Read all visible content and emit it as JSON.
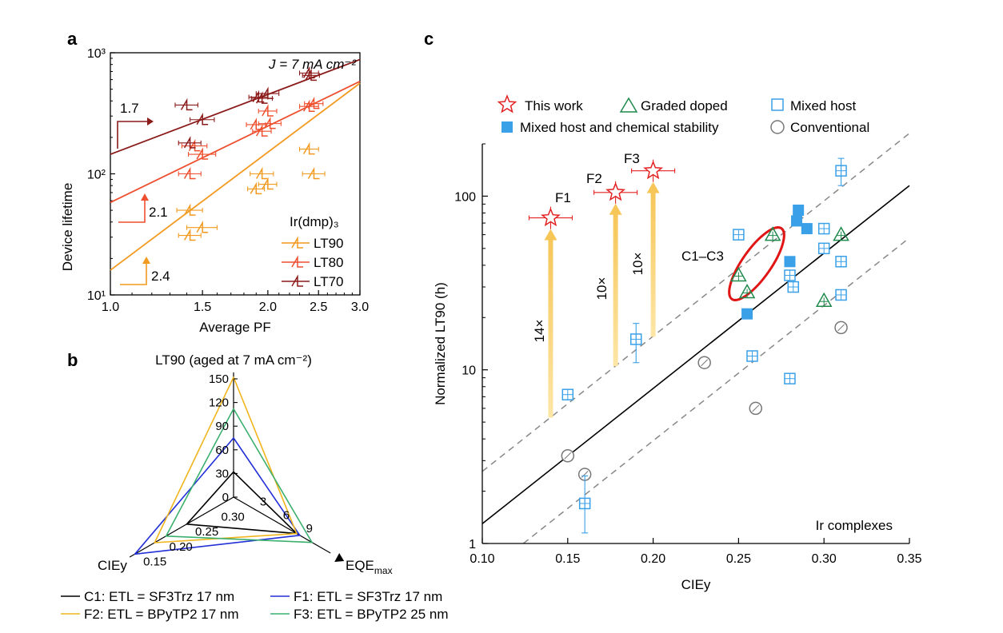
{
  "panel_labels": {
    "a": "a",
    "b": "b",
    "c": "c"
  },
  "chart_data": [
    {
      "panel": "a",
      "type": "scatter",
      "x_scale": "log",
      "y_scale": "log",
      "xlim": [
        1.0,
        3.0
      ],
      "ylim": [
        10,
        1000
      ],
      "xlabel": "Average PF",
      "ylabel": "Device lifetime",
      "annotation": "J = 7 mA cm⁻²",
      "x_ticks": [
        "1.0",
        "1.5",
        "2.0",
        "2.5",
        "3.0"
      ],
      "x_tick_values": [
        1.0,
        1.5,
        2.0,
        2.5,
        3.0
      ],
      "y_ticks": [
        "10¹",
        "10²",
        "10³"
      ],
      "y_tick_values": [
        10,
        100,
        1000
      ],
      "legend_title": "Ir(dmp)₃",
      "legend_position": "bottom-right",
      "slope_labels": [
        "1.7",
        "2.1",
        "2.4"
      ],
      "series": [
        {
          "name": "LT90",
          "color": "#f29a1f",
          "x": [
            1.42,
            1.5,
            1.42,
            1.9,
            2.0,
            1.95,
            2.4,
            2.45
          ],
          "y": [
            50,
            36,
            31,
            75,
            82,
            100,
            160,
            100
          ],
          "xerr": [
            0.08,
            0.1,
            0.07,
            0.07,
            0.08,
            0.1,
            0.1,
            0.12
          ],
          "fit": {
            "x": [
              1.0,
              3.0
            ],
            "y": [
              16,
              560
            ]
          }
        },
        {
          "name": "LT80",
          "color": "#ee4f2e",
          "x": [
            1.42,
            1.5,
            1.45,
            1.95,
            1.9,
            2.02,
            2.0,
            2.45,
            2.4
          ],
          "y": [
            100,
            145,
            170,
            225,
            255,
            260,
            330,
            380,
            360
          ],
          "xerr": [
            0.07,
            0.09,
            0.08,
            0.08,
            0.08,
            0.1,
            0.08,
            0.1,
            0.1
          ],
          "fit": {
            "x": [
              1.0,
              3.0
            ],
            "y": [
              58,
              580
            ]
          }
        },
        {
          "name": "LT70",
          "color": "#8b1a1a",
          "x": [
            1.42,
            1.4,
            1.5,
            1.95,
            2.0,
            1.92,
            2.42,
            2.4
          ],
          "y": [
            180,
            370,
            280,
            420,
            460,
            430,
            650,
            680
          ],
          "xerr": [
            0.07,
            0.07,
            0.08,
            0.09,
            0.1,
            0.08,
            0.09,
            0.1
          ],
          "fit": {
            "x": [
              1.0,
              3.0
            ],
            "y": [
              145,
              880
            ]
          }
        }
      ]
    },
    {
      "panel": "b",
      "type": "radar",
      "axes": [
        {
          "name": "LT90 (aged at 7 mA cm⁻²)",
          "ticks": [
            "0",
            "30",
            "60",
            "90",
            "120",
            "150"
          ],
          "tick_values": [
            0,
            30,
            60,
            90,
            120,
            150
          ]
        },
        {
          "name": "EQE_max",
          "ticks": [
            "3",
            "6",
            "9"
          ],
          "tick_values": [
            3,
            6,
            9
          ]
        },
        {
          "name": "CIEy",
          "ticks": [
            "0.30",
            "0.25",
            "0.20",
            "0.15"
          ],
          "tick_values": [
            0.3,
            0.25,
            0.2,
            0.15
          ]
        }
      ],
      "series": [
        {
          "name": "C1: ETL = SF3Trz 17 nm",
          "color": "#000000",
          "LT90": 32,
          "EQEmax": 8.2,
          "CIEy": 0.24
        },
        {
          "name": "F1: ETL = SF3Trz 17 nm",
          "color": "#2330d8",
          "LT90": 75,
          "EQEmax": 8.6,
          "CIEy": 0.14
        },
        {
          "name": "F2: ETL = BPyTP2 17 nm",
          "color": "#f0b51e",
          "LT90": 152,
          "EQEmax": 8.2,
          "CIEy": 0.178
        },
        {
          "name": "F3: ETL = BPyTP2 25 nm",
          "color": "#3bb06e",
          "LT90": 112,
          "EQEmax": 10.2,
          "CIEy": 0.2
        }
      ]
    },
    {
      "panel": "c",
      "type": "scatter",
      "y_scale": "log",
      "xlim": [
        0.1,
        0.35
      ],
      "ylim": [
        1,
        200
      ],
      "xlabel": "CIEy",
      "ylabel": "Normalized LT90 (h)",
      "x_ticks": [
        "0.10",
        "0.15",
        "0.20",
        "0.25",
        "0.30",
        "0.35"
      ],
      "x_tick_values": [
        0.1,
        0.15,
        0.2,
        0.25,
        0.3,
        0.35
      ],
      "y_ticks": [
        "1",
        "10",
        "100"
      ],
      "y_tick_values": [
        1,
        10,
        100
      ],
      "corner_label": "Ir complexes",
      "region_label": "C1–C3",
      "point_labels": [
        "F1",
        "F2",
        "F3"
      ],
      "arrow_labels": [
        "14×",
        "10×",
        "10×"
      ],
      "arrows": [
        {
          "x": 0.14,
          "y_from": 5.3,
          "y_to": 75
        },
        {
          "x": 0.178,
          "y_from": 10.5,
          "y_to": 105
        },
        {
          "x": 0.2,
          "y_from": 15.5,
          "y_to": 140
        }
      ],
      "trend": {
        "x": [
          0.1,
          0.35
        ],
        "y": [
          1.3,
          115
        ]
      },
      "trend_band": {
        "factor": 2.0
      },
      "series": [
        {
          "name": "This work",
          "marker": "star",
          "color": "#e32222",
          "x": [
            0.14,
            0.178,
            0.2
          ],
          "y": [
            75,
            105,
            140
          ]
        },
        {
          "name": "Graded doped",
          "marker": "triangle",
          "color": "#1f8a4c",
          "x": [
            0.25,
            0.255,
            0.27,
            0.3,
            0.31
          ],
          "y": [
            35,
            28,
            60,
            25,
            60
          ]
        },
        {
          "name": "Mixed host",
          "marker": "square-open",
          "color": "#3aa0e8",
          "x": [
            0.15,
            0.16,
            0.19,
            0.25,
            0.258,
            0.28,
            0.28,
            0.282,
            0.3,
            0.3,
            0.31,
            0.31,
            0.31
          ],
          "y": [
            7.2,
            1.7,
            15,
            60,
            12,
            35,
            8.9,
            30,
            65,
            50,
            42,
            140,
            27
          ]
        },
        {
          "name": "Mixed host and chemical stability",
          "marker": "square-filled",
          "color": "#3aa0e8",
          "x": [
            0.255,
            0.28,
            0.284,
            0.285,
            0.29
          ],
          "y": [
            21,
            42,
            72,
            83,
            65
          ]
        },
        {
          "name": "Conventional",
          "marker": "circle",
          "color": "#777777",
          "x": [
            0.15,
            0.16,
            0.23,
            0.26,
            0.31
          ],
          "y": [
            3.2,
            2.5,
            11,
            6,
            17.5
          ]
        }
      ]
    }
  ]
}
